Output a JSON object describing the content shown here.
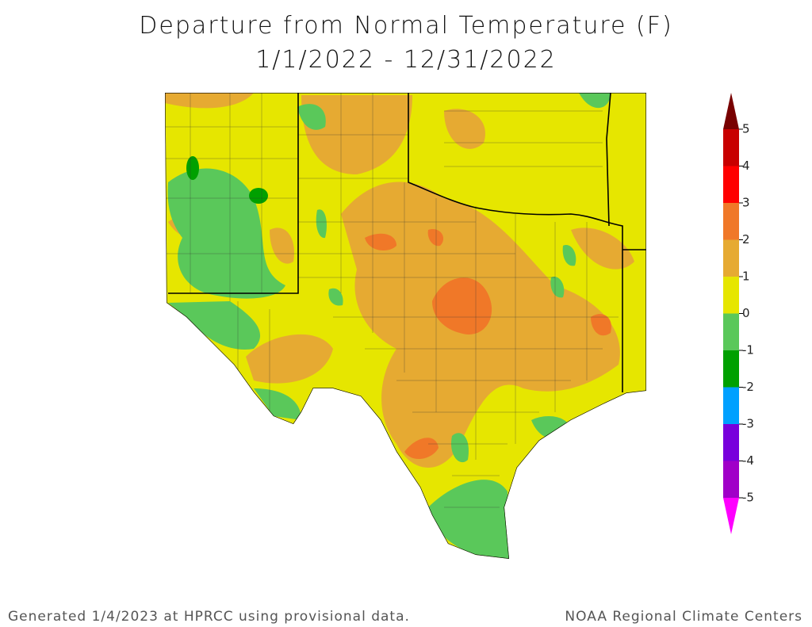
{
  "title": [
    "Departure from Normal Temperature (F)",
    "1/1/2022 - 12/31/2022"
  ],
  "footer": {
    "left": "Generated 1/4/2023 at HPRCC using provisional data.",
    "right": "NOAA Regional Climate Centers"
  },
  "legend": {
    "ticks": [
      5,
      4,
      3,
      2,
      1,
      0,
      -1,
      -2,
      -3,
      -4,
      -5
    ],
    "colors": [
      "#780000",
      "#c80000",
      "#ff0000",
      "#f07828",
      "#e6aa32",
      "#e6e600",
      "#5ac85a",
      "#00a000",
      "#00a0ff",
      "#7800dc",
      "#a000c8",
      "#ff00ff"
    ]
  }
}
